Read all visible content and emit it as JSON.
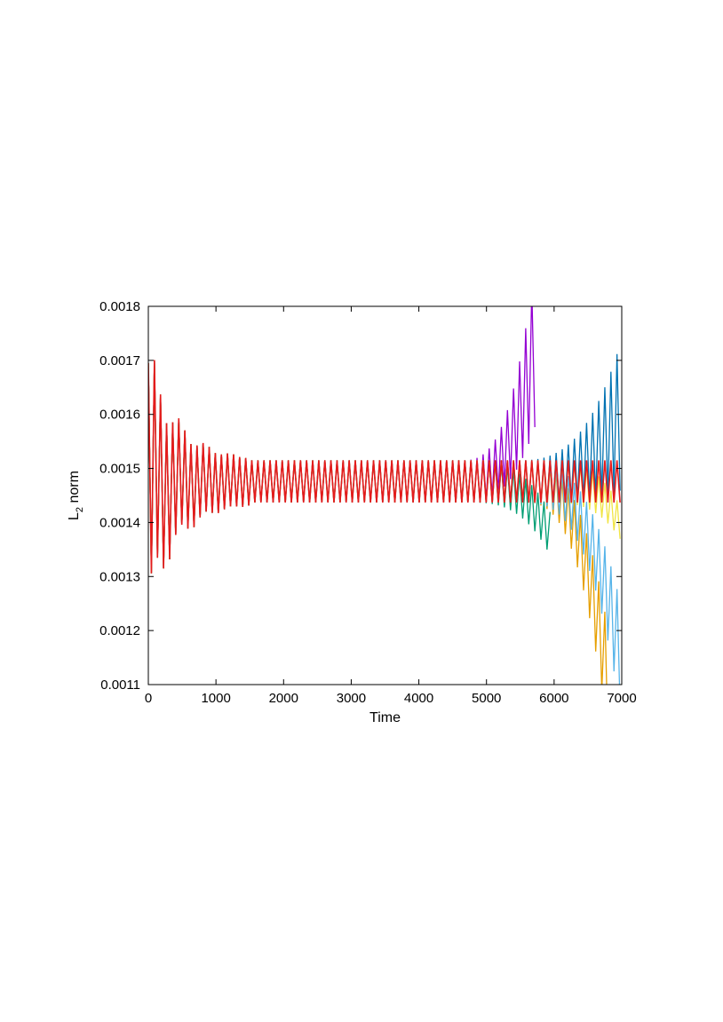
{
  "chart_data": {
    "type": "line",
    "title": "",
    "xlabel": "Time",
    "ylabel_main": "L",
    "ylabel_sub": "2",
    "ylabel_rest": " norm",
    "xlim": [
      0,
      7000
    ],
    "ylim": [
      0.0011,
      0.0018
    ],
    "x_ticks": [
      0,
      1000,
      2000,
      3000,
      4000,
      5000,
      6000,
      7000
    ],
    "x_tick_labels": [
      "0",
      "1000",
      "2000",
      "3000",
      "4000",
      "5000",
      "6000",
      "7000"
    ],
    "y_ticks": [
      0.0011,
      0.0012,
      0.0013,
      0.0014,
      0.0015,
      0.0016,
      0.0017,
      0.0018
    ],
    "y_tick_labels": [
      "0.0011",
      "0.0012",
      "0.0013",
      "0.0014",
      "0.0015",
      "0.0016",
      "0.0017",
      "0.0018"
    ],
    "grid": false,
    "legend": "none",
    "baseline_band": {
      "t_start": 1500,
      "lower": 0.001437,
      "upper": 0.001515,
      "mean": 0.001476
    },
    "series": [
      {
        "color": "#9400d3",
        "diverge_start": 4600,
        "end_t": 5750,
        "end_mean": 0.00175,
        "end_amp": 0.00016,
        "direction": "up"
      },
      {
        "color": "#0072b2",
        "diverge_start": 5400,
        "end_t": 7000,
        "end_mean": 0.0016,
        "end_amp": 0.00014,
        "direction": "up"
      },
      {
        "color": "#009e73",
        "diverge_start": 4700,
        "end_t": 5980,
        "end_mean": 0.00137,
        "end_amp": 4e-05,
        "direction": "down"
      },
      {
        "color": "#e69f00",
        "diverge_start": 5500,
        "end_t": 6800,
        "end_mean": 0.0011,
        "end_amp": 0.0001,
        "direction": "down"
      },
      {
        "color": "#56b4e9",
        "diverge_start": 5500,
        "end_t": 7000,
        "end_mean": 0.00114,
        "end_amp": 0.0001,
        "direction": "down"
      },
      {
        "color": "#f0e442",
        "diverge_start": 5900,
        "end_t": 7000,
        "end_mean": 0.001395,
        "end_amp": 3e-05,
        "direction": "down"
      },
      {
        "color": "#e41a1c",
        "diverge_start": 7000,
        "end_t": 7000,
        "end_mean": 0.001476,
        "end_amp": 4e-05,
        "direction": "flat"
      }
    ]
  }
}
